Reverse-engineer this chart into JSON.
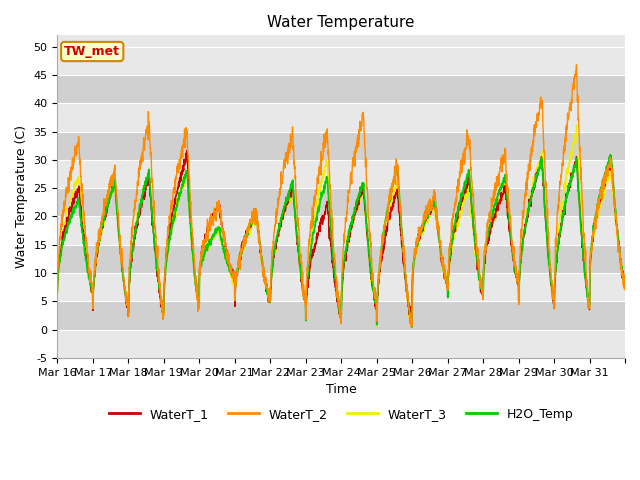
{
  "title": "Water Temperature",
  "ylabel": "Water Temperature (C)",
  "xlabel": "Time",
  "ylim": [
    -5,
    52
  ],
  "yticks": [
    -5,
    0,
    5,
    10,
    15,
    20,
    25,
    30,
    35,
    40,
    45,
    50
  ],
  "x_labels": [
    "Mar 16",
    "Mar 17",
    "Mar 18",
    "Mar 19",
    "Mar 20",
    "Mar 21",
    "Mar 22",
    "Mar 23",
    "Mar 24",
    "Mar 25",
    "Mar 26",
    "Mar 27",
    "Mar 28",
    "Mar 29",
    "Mar 30",
    "Mar 31"
  ],
  "colors": {
    "WaterT_1": "#cc0000",
    "WaterT_2": "#ff8c00",
    "WaterT_3": "#eeee00",
    "H2O_Temp": "#00cc00"
  },
  "annotation_text": "TW_met",
  "annotation_color": "#cc0000",
  "annotation_bg": "#ffffcc",
  "annotation_border": "#cc8800",
  "bg_color": "#ffffff",
  "plot_bg_light": "#e8e8e8",
  "plot_bg_dark": "#d0d0d0",
  "grid_color": "#ffffff",
  "title_fontsize": 11,
  "label_fontsize": 9,
  "tick_fontsize": 8,
  "legend_fontsize": 9
}
